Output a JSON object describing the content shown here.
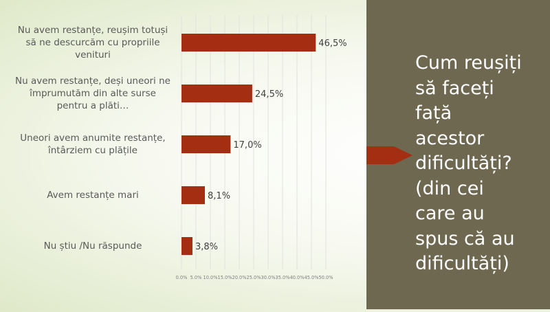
{
  "title": "Cum reușiți să faceți față acestor dificultăți? (din cei care au spus că au dificultăți)",
  "colors": {
    "bar": "#a32e12",
    "panel": "#6f6850",
    "arrow": "#a32e12"
  },
  "chart_data": {
    "type": "bar",
    "orientation": "horizontal",
    "categories": [
      "Nu avem restanțe, reușim totuși să ne descurcăm cu propriile venituri",
      "Nu avem restanțe, deși uneori ne împrumutăm din alte surse pentru a plăti…",
      "Uneori avem anumite restanțe, întârziem cu plățile",
      "Avem restanțe mari",
      "Nu știu /Nu răspunde"
    ],
    "values": [
      46.5,
      24.5,
      17.0,
      8.1,
      3.8
    ],
    "data_labels": [
      "46,5%",
      "24,5%",
      "17,0%",
      "8,1%",
      "3,8%"
    ],
    "xlim": [
      0,
      50
    ],
    "x_ticks": [
      "0.0%",
      "5.0%",
      "10.0%",
      "15.0%",
      "20.0%",
      "25.0%",
      "30.0%",
      "35.0%",
      "40.0%",
      "45.0%",
      "50.0%"
    ],
    "grid": true,
    "legend": "none"
  }
}
